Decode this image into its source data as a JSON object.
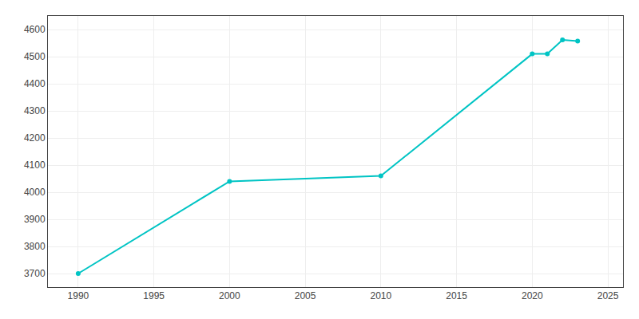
{
  "chart_data": {
    "type": "line",
    "x": [
      1990,
      2000,
      2010,
      2020,
      2021,
      2022,
      2023
    ],
    "values": [
      3700,
      4040,
      4060,
      4510,
      4510,
      4562,
      4557
    ],
    "color": "#00C4C4",
    "marker": "circle",
    "xlim": [
      1988,
      2026
    ],
    "ylim": [
      3650,
      4650
    ],
    "xticks": [
      1990,
      1995,
      2000,
      2005,
      2010,
      2015,
      2020,
      2025
    ],
    "yticks": [
      3700,
      3800,
      3900,
      4000,
      4100,
      4200,
      4300,
      4400,
      4500,
      4600
    ],
    "grid": true
  }
}
